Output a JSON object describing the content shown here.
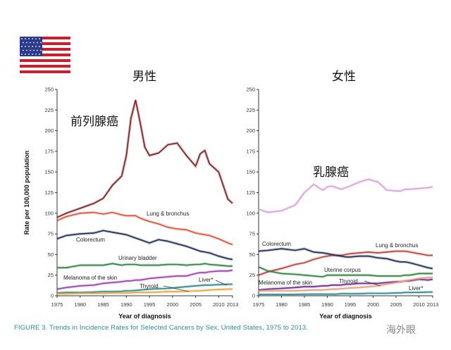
{
  "caption": {
    "prefix": "FIGURE 3.",
    "text": "Trends in Incidence Rates for Selected Cancers by Sex, United States, 1975 to 2013."
  },
  "watermark": "海外眼",
  "flag_icon": "us-flag",
  "chart_data": [
    {
      "type": "line",
      "title": "男性",
      "annotation": "前列腺癌",
      "xlabel": "Year of diagnosis",
      "ylabel": "Rate per 100,000 population",
      "ylim": [
        0,
        250
      ],
      "xlim": [
        1975,
        2013
      ],
      "x_ticks": [
        "1975",
        "1980",
        "1985",
        "1990",
        "1995",
        "2000",
        "2005",
        "2010",
        "2013"
      ],
      "y_ticks": [
        "0",
        "25",
        "50",
        "75",
        "100",
        "125",
        "150",
        "175",
        "200",
        "225",
        "250"
      ],
      "grid": false,
      "x": [
        1975,
        1977,
        1980,
        1983,
        1985,
        1987,
        1989,
        1990,
        1991,
        1992,
        1993,
        1994,
        1995,
        1997,
        1999,
        2001,
        2003,
        2005,
        2006,
        2007,
        2008,
        2010,
        2012,
        2013
      ],
      "series": [
        {
          "name": "前列腺癌",
          "color": "#7a1f1f",
          "values": [
            95,
            100,
            106,
            112,
            118,
            134,
            145,
            170,
            215,
            237,
            210,
            180,
            170,
            173,
            183,
            185,
            170,
            157,
            172,
            176,
            160,
            150,
            117,
            112
          ]
        },
        {
          "name": "Lung & bronchus",
          "color": "#d9533a",
          "values": [
            91,
            96,
            100,
            101,
            99,
            101,
            98,
            97,
            97,
            97,
            94,
            92,
            90,
            87,
            83,
            81,
            80,
            76,
            75,
            74,
            73,
            69,
            64,
            62
          ]
        },
        {
          "name": "Colorectum",
          "color": "#1f2a50",
          "values": [
            69,
            73,
            75,
            76,
            79,
            77,
            75,
            74,
            72,
            70,
            68,
            66,
            64,
            68,
            66,
            63,
            60,
            56,
            54,
            53,
            52,
            48,
            45,
            44
          ]
        },
        {
          "name": "Urinary bladder",
          "color": "#2e8040",
          "values": [
            34,
            34,
            37,
            37,
            37,
            39,
            37,
            38,
            38,
            38,
            37,
            37,
            37,
            37,
            38,
            38,
            37,
            38,
            38,
            39,
            38,
            37,
            36,
            36
          ]
        },
        {
          "name": "Melanoma of the skin",
          "color": "#9a3fb0",
          "values": [
            8,
            10,
            12,
            13,
            15,
            16,
            17,
            18,
            18,
            19,
            19,
            20,
            21,
            22,
            23,
            24,
            24,
            27,
            28,
            28,
            29,
            30,
            30,
            31
          ]
        },
        {
          "name": "Liver*",
          "color": "#2a8a8a",
          "values": [
            3.5,
            4,
            4,
            4.5,
            5,
            5,
            5.5,
            6,
            6,
            6.5,
            7,
            7.5,
            8,
            8.5,
            9,
            10,
            11,
            12,
            12.5,
            13,
            13,
            13.5,
            14,
            14
          ]
        },
        {
          "name": "Thyroid",
          "color": "#e8a33a",
          "values": [
            2.5,
            2.5,
            3,
            3,
            3,
            3.5,
            3.5,
            3.5,
            3.5,
            4,
            4,
            4,
            4,
            4.5,
            5,
            5,
            5.5,
            6,
            6,
            6.5,
            7,
            7.5,
            8,
            8
          ]
        }
      ]
    },
    {
      "type": "line",
      "title": "女性",
      "annotation": "乳腺癌",
      "xlabel": "Year of diagnosis",
      "ylim": [
        0,
        250
      ],
      "xlim": [
        1975,
        2013
      ],
      "x_ticks": [
        "1975",
        "1980",
        "1985",
        "1990",
        "1995",
        "2000",
        "2005",
        "2010",
        "2013"
      ],
      "y_ticks": [
        "0",
        "25",
        "50",
        "75",
        "100",
        "125",
        "150",
        "175",
        "200",
        "225",
        "250"
      ],
      "grid": false,
      "x": [
        1975,
        1977,
        1980,
        1983,
        1985,
        1987,
        1989,
        1990,
        1991,
        1992,
        1993,
        1994,
        1995,
        1997,
        1999,
        2001,
        2003,
        2005,
        2006,
        2007,
        2008,
        2010,
        2012,
        2013
      ],
      "series": [
        {
          "name": "乳腺癌",
          "color": "#d9a0dc",
          "values": [
            105,
            101,
            103,
            110,
            125,
            135,
            128,
            132,
            133,
            131,
            129,
            131,
            133,
            138,
            141,
            138,
            128,
            127,
            127,
            129,
            129,
            130,
            131,
            132
          ]
        },
        {
          "name": "Lung & bronchus",
          "color": "#b5443a",
          "values": [
            25,
            29,
            33,
            38,
            40,
            44,
            47,
            48,
            49,
            49,
            49,
            50,
            51,
            52,
            53,
            52,
            53,
            54,
            54,
            54,
            53,
            51,
            49,
            49
          ]
        },
        {
          "name": "Colorectum",
          "color": "#1f2a50",
          "values": [
            54,
            55,
            57,
            55,
            57,
            53,
            52,
            51,
            50,
            49,
            48,
            47,
            47,
            48,
            48,
            46,
            45,
            42,
            41,
            41,
            40,
            37,
            34,
            33
          ]
        },
        {
          "name": "Uterine corpus",
          "color": "#2e8040",
          "values": [
            35,
            30,
            27,
            26,
            25,
            24,
            23,
            25,
            25,
            25,
            25,
            25,
            25,
            25,
            25,
            24,
            24,
            24,
            24,
            25,
            25,
            27,
            27,
            27
          ]
        },
        {
          "name": "Melanoma of the skin",
          "color": "#6a2a90",
          "values": [
            7,
            8,
            9,
            10,
            11,
            11,
            12,
            12,
            13,
            13,
            13,
            14,
            14,
            15,
            15,
            15,
            16,
            17,
            17,
            18,
            18,
            20,
            19,
            20
          ]
        },
        {
          "name": "Thyroid",
          "color": "#e89a7a",
          "values": [
            6,
            6,
            6,
            6,
            6.5,
            7,
            7,
            7.5,
            8,
            8,
            8.5,
            9,
            9.5,
            10,
            11,
            12,
            14,
            16,
            17,
            18,
            19,
            21,
            22,
            22
          ]
        },
        {
          "name": "Liver*",
          "color": "#2a8a8a",
          "values": [
            1.5,
            1.5,
            1.5,
            1.5,
            2,
            2,
            2,
            2,
            2,
            2,
            2.5,
            2.5,
            2.5,
            2.5,
            3,
            3,
            3,
            3.5,
            3.5,
            4,
            4,
            4,
            4.5,
            4.5
          ]
        }
      ]
    }
  ]
}
